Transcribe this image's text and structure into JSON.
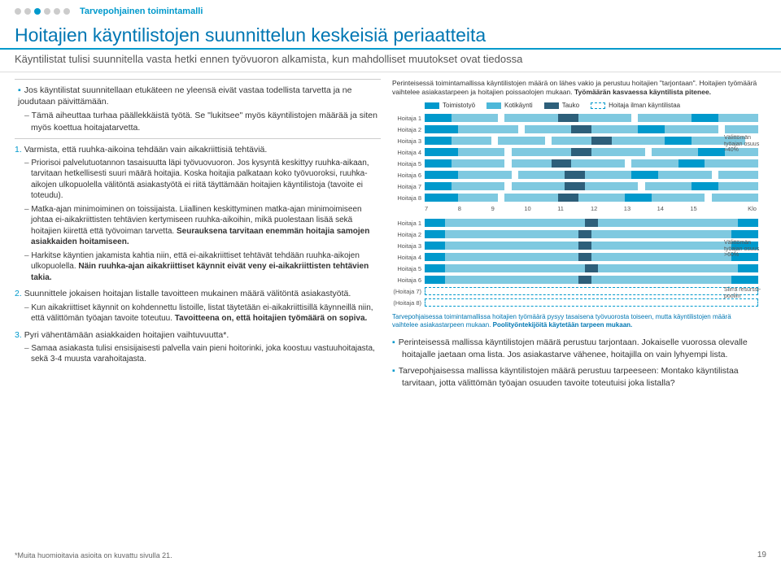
{
  "topbar_label": "Tarvepohjainen toimintamalli",
  "title": "Hoitajien käyntilistojen suunnittelun keskeisiä periaatteita",
  "subtitle": "Käyntilistat tulisi suunnitella vasta hetki ennen työvuoron alkamista, kun mahdolliset muutokset ovat tiedossa",
  "box_main": "Jos käyntilistat suunnitellaan etukäteen ne yleensä eivät vastaa todellista tarvetta ja ne joudutaan päivittämään.",
  "box_sub": "Tämä aiheuttaa turhaa päällekkäistä työtä. Se \"lukitsee\" myös käyntilistojen määrää ja siten myös koettua hoitajatarvetta.",
  "ol": [
    {
      "main": "Varmista, että ruuhka-aikoina tehdään vain aikakriittisiä tehtäviä.",
      "subs": [
        "Priorisoi palvelutuotannon tasaisuutta läpi työvuovuoron. Jos kysyntä keskittyy ruuhka-aikaan, tarvitaan hetkellisesti suuri määrä hoitajia. Koska hoitajia palkataan koko työvuoroksi, ruuhka-aikojen ulkopuolella välitöntä asiakastyötä ei riitä täyttämään hoitajien käyntilistoja (tavoite ei toteudu).",
        "Matka-ajan minimoiminen on toissijaista. Liiallinen keskittyminen matka-ajan minimoimiseen johtaa ei-aikakriittisten tehtävien kertymiseen ruuhka-aikoihin, mikä puolestaan lisää sekä hoitajien kiirettä että työvoiman tarvetta. Seurauksena tarvitaan enemmän hoitajia samojen asiakkaiden hoitamiseen.",
        "Harkitse käyntien jakamista kahtia niin, että ei-aikakriittiset tehtävät tehdään ruuhka-aikojen ulkopuolella. Näin ruuhka-ajan aikakriittiset käynnit eivät veny ei-aikakriittisten tehtävien takia."
      ]
    },
    {
      "main": "Suunnittele jokaisen hoitajan listalle tavoitteen mukainen määrä välitöntä asiakastyötä.",
      "subs": [
        "Kun aikakriittiset käynnit on kohdennettu listoille, listat täytetään ei-aikakriittisillä käynneillä niin, että välittömän työajan tavoite toteutuu. Tavoitteena on, että hoitajien työmäärä on sopiva."
      ]
    },
    {
      "main": "Pyri vähentämään asiakkaiden hoitajien vaihtuvuutta*.",
      "subs": [
        "Samaa asiakasta tulisi ensisijaisesti palvella vain pieni hoitorinki, joka koostuu vastuuhoitajasta, sekä 3-4 muusta varahoitajasta."
      ]
    }
  ],
  "chart_intro_plain": "Perinteisessä toimintamallissa käyntilistojen määrä on lähes vakio ja perustuu hoitajien \"tarjontaan\". Hoitajien työmäärä vaihtelee asiakastarpeen ja hoitajien poissaolojen mukaan. ",
  "chart_intro_bold": "Työmäärän kasvaessa käyntilista pitenee.",
  "legend": {
    "toimisto": {
      "label": "Toimistotyö",
      "color": "#0099cc"
    },
    "koti": {
      "label": "Kotikäynti",
      "color": "#4db8d9"
    },
    "tauko": {
      "label": "Tauko",
      "color": "#2d5f7a"
    },
    "ilman": {
      "label": "Hoitaja ilman käyntilistaa",
      "color": "#0099cc",
      "dashed": true
    }
  },
  "xticks": [
    "7",
    "8",
    "9",
    "10",
    "11",
    "12",
    "13",
    "14",
    "15"
  ],
  "xklo": "Klo",
  "chart1": {
    "labels": [
      "Hoitaja 1",
      "Hoitaja 2",
      "Hoitaja 3",
      "Hoitaja 4",
      "Hoitaja 5",
      "Hoitaja 6",
      "Hoitaja 7",
      "Hoitaja 8"
    ],
    "rows": [
      [
        [
          "t",
          0,
          8
        ],
        [
          "k",
          8,
          22
        ],
        [
          "k",
          24,
          40
        ],
        [
          "p",
          40,
          46
        ],
        [
          "k",
          46,
          62
        ],
        [
          "k",
          64,
          80
        ],
        [
          "t",
          80,
          88
        ],
        [
          "k",
          88,
          100
        ]
      ],
      [
        [
          "t",
          0,
          10
        ],
        [
          "k",
          10,
          28
        ],
        [
          "k",
          30,
          44
        ],
        [
          "p",
          44,
          50
        ],
        [
          "k",
          50,
          64
        ],
        [
          "t",
          64,
          72
        ],
        [
          "k",
          72,
          88
        ],
        [
          "k",
          90,
          100
        ]
      ],
      [
        [
          "t",
          0,
          8
        ],
        [
          "k",
          8,
          20
        ],
        [
          "k",
          22,
          36
        ],
        [
          "k",
          38,
          50
        ],
        [
          "p",
          50,
          56
        ],
        [
          "k",
          56,
          72
        ],
        [
          "t",
          72,
          80
        ],
        [
          "k",
          80,
          96
        ]
      ],
      [
        [
          "t",
          0,
          10
        ],
        [
          "k",
          10,
          24
        ],
        [
          "k",
          26,
          44
        ],
        [
          "p",
          44,
          50
        ],
        [
          "k",
          50,
          66
        ],
        [
          "k",
          68,
          82
        ],
        [
          "t",
          82,
          90
        ],
        [
          "k",
          90,
          100
        ]
      ],
      [
        [
          "t",
          0,
          8
        ],
        [
          "k",
          8,
          24
        ],
        [
          "k",
          26,
          38
        ],
        [
          "p",
          38,
          44
        ],
        [
          "k",
          44,
          60
        ],
        [
          "k",
          62,
          76
        ],
        [
          "t",
          76,
          84
        ],
        [
          "k",
          84,
          100
        ]
      ],
      [
        [
          "t",
          0,
          10
        ],
        [
          "k",
          10,
          26
        ],
        [
          "k",
          28,
          42
        ],
        [
          "p",
          42,
          48
        ],
        [
          "k",
          48,
          62
        ],
        [
          "t",
          62,
          70
        ],
        [
          "k",
          70,
          86
        ],
        [
          "k",
          88,
          100
        ]
      ],
      [
        [
          "t",
          0,
          8
        ],
        [
          "k",
          8,
          24
        ],
        [
          "k",
          26,
          42
        ],
        [
          "p",
          42,
          48
        ],
        [
          "k",
          48,
          64
        ],
        [
          "k",
          66,
          80
        ],
        [
          "t",
          80,
          88
        ],
        [
          "k",
          88,
          100
        ]
      ],
      [
        [
          "t",
          0,
          10
        ],
        [
          "k",
          10,
          22
        ],
        [
          "k",
          24,
          40
        ],
        [
          "p",
          40,
          46
        ],
        [
          "k",
          46,
          60
        ],
        [
          "t",
          60,
          68
        ],
        [
          "k",
          68,
          84
        ],
        [
          "k",
          86,
          100
        ]
      ]
    ],
    "note": "Välittömän työajan osuus ≈40%"
  },
  "chart2": {
    "labels": [
      "Hoitaja 1",
      "Hoitaja 2",
      "Hoitaja 3",
      "Hoitaja 4",
      "Hoitaja 5",
      "Hoitaja 6",
      "(Hoitaja 7)",
      "(Hoitaja 8)"
    ],
    "rows": [
      [
        [
          "t",
          0,
          6
        ],
        [
          "k",
          6,
          20
        ],
        [
          "k",
          20,
          34
        ],
        [
          "k",
          34,
          48
        ],
        [
          "p",
          48,
          52
        ],
        [
          "k",
          52,
          66
        ],
        [
          "k",
          66,
          80
        ],
        [
          "k",
          80,
          94
        ],
        [
          "t",
          94,
          100
        ]
      ],
      [
        [
          "t",
          0,
          6
        ],
        [
          "k",
          6,
          18
        ],
        [
          "k",
          18,
          32
        ],
        [
          "k",
          32,
          46
        ],
        [
          "p",
          46,
          50
        ],
        [
          "k",
          50,
          64
        ],
        [
          "k",
          64,
          78
        ],
        [
          "k",
          78,
          92
        ],
        [
          "t",
          92,
          100
        ]
      ],
      [
        [
          "t",
          0,
          6
        ],
        [
          "k",
          6,
          20
        ],
        [
          "k",
          20,
          34
        ],
        [
          "k",
          34,
          46
        ],
        [
          "p",
          46,
          50
        ],
        [
          "k",
          50,
          64
        ],
        [
          "k",
          64,
          78
        ],
        [
          "k",
          78,
          92
        ],
        [
          "t",
          92,
          100
        ]
      ],
      [
        [
          "t",
          0,
          6
        ],
        [
          "k",
          6,
          18
        ],
        [
          "k",
          18,
          32
        ],
        [
          "k",
          32,
          46
        ],
        [
          "p",
          46,
          50
        ],
        [
          "k",
          50,
          64
        ],
        [
          "k",
          64,
          78
        ],
        [
          "k",
          78,
          92
        ],
        [
          "t",
          92,
          100
        ]
      ],
      [
        [
          "t",
          0,
          6
        ],
        [
          "k",
          6,
          20
        ],
        [
          "k",
          20,
          34
        ],
        [
          "k",
          34,
          48
        ],
        [
          "p",
          48,
          52
        ],
        [
          "k",
          52,
          66
        ],
        [
          "k",
          66,
          80
        ],
        [
          "k",
          80,
          94
        ],
        [
          "t",
          94,
          100
        ]
      ],
      [
        [
          "t",
          0,
          6
        ],
        [
          "k",
          6,
          18
        ],
        [
          "k",
          18,
          32
        ],
        [
          "k",
          32,
          46
        ],
        [
          "p",
          46,
          50
        ],
        [
          "k",
          50,
          64
        ],
        [
          "k",
          64,
          78
        ],
        [
          "k",
          78,
          92
        ],
        [
          "t",
          92,
          100
        ]
      ],
      [
        [
          "d",
          0,
          100
        ]
      ],
      [
        [
          "d",
          0,
          100
        ]
      ]
    ],
    "note1": "Välittömän työajan osuus >60%",
    "note2": "Siirrä resurssi-pooliin"
  },
  "chart_caption_plain": "Tarvepohjaisessa toimintamallissa hoitajien työmäärä pysyy tasaisena työvuorosta toiseen, mutta käyntilistojen määrä vaihtelee asiakastarpeen mukaan. ",
  "chart_caption_bold": "Poolityöntekijöitä käytetään tarpeen mukaan.",
  "bullets": [
    "Perinteisessä mallissa käyntilistojen määrä perustuu tarjontaan. Jokaiselle vuorossa olevalle hoitajalle jaetaan oma lista. Jos asiakastarve vähenee, hoitajilla on vain lyhyempi lista.",
    "Tarvepohjaisessa mallissa käyntilistojen määrä perustuu tarpeeseen: Montako käyntilistaa tarvitaan, jotta välittömän työajan osuuden tavoite toteutuisi joka listalla?"
  ],
  "footnote": "*Muita huomioitavia asioita on kuvattu sivulla 21.",
  "pagenum": "19",
  "colors": {
    "t": "#0099cc",
    "k": "#7fc9e0",
    "p": "#2d5f7a"
  }
}
